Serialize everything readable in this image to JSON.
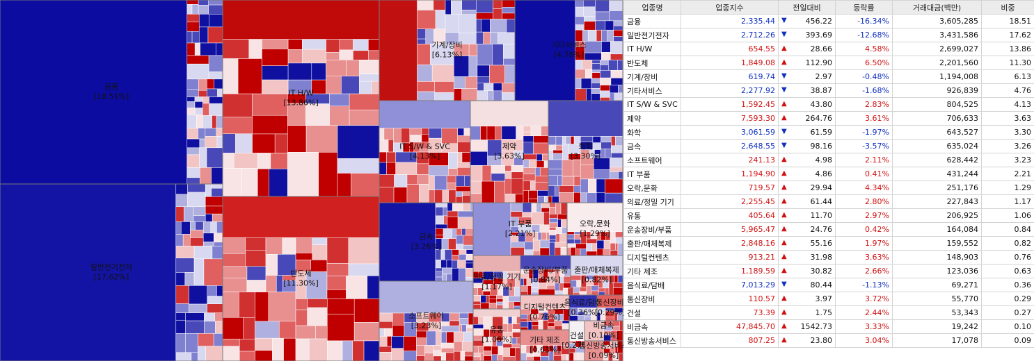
{
  "treemap": {
    "blocks": [
      {
        "name": "금융",
        "share": "[18.51%]"
      },
      {
        "name": "일반전기전자",
        "share": "[17.62%]"
      },
      {
        "name": "IT H/W",
        "share": "[13.86%]"
      },
      {
        "name": "반도체",
        "share": "[11.30%]"
      },
      {
        "name": "기계/장비",
        "share": "[6.13%]"
      },
      {
        "name": "기타서비스",
        "share": "[4.76%]"
      },
      {
        "name": "IT S/W & SVC",
        "share": "[4.13%]"
      },
      {
        "name": "제약",
        "share": "[3.63%]"
      },
      {
        "name": "화학",
        "share": "[3.30%]"
      },
      {
        "name": "금속",
        "share": "[3.26%]"
      },
      {
        "name": "소프트웨어",
        "share": "[3.23%]"
      },
      {
        "name": "IT 부품",
        "share": "[2.21%]"
      },
      {
        "name": "오락,문화",
        "share": "[1.29%]"
      },
      {
        "name": "의료/정밀 기기",
        "share": "[1.17%]"
      },
      {
        "name": "유통",
        "share": "[1.06%]"
      },
      {
        "name": "운송장비/부품",
        "share": "[0.84%]"
      },
      {
        "name": "출판/매체복제",
        "share": "[0.82%]"
      },
      {
        "name": "디지털컨텐츠",
        "share": "[0.76%]"
      },
      {
        "name": "기타 제조",
        "share": "[0.63%]"
      },
      {
        "name": "음식료/담배",
        "share": "[0.36%]"
      },
      {
        "name": "통신장비",
        "share": "[0.29%]"
      },
      {
        "name": "건설",
        "share": "[0.27%]"
      },
      {
        "name": "비금속",
        "share": "[0.10%]"
      },
      {
        "name": "통신방송서비스",
        "share": "[0.09%]"
      }
    ]
  },
  "table": {
    "header": [
      "업종명",
      "업종지수",
      "전일대비",
      "등락률",
      "거래대금(백만)",
      "비중"
    ],
    "rows": [
      [
        "금융",
        "2,335.44",
        "456.22",
        "-16.34%",
        "3,605,285",
        "18.51"
      ],
      [
        "일반전기전자",
        "2,712.26",
        "393.69",
        "-12.68%",
        "3,431,586",
        "17.62"
      ],
      [
        "IT H/W",
        "654.55",
        "28.66",
        "4.58%",
        "2,699,027",
        "13.86"
      ],
      [
        "반도체",
        "1,849.08",
        "112.90",
        "6.50%",
        "2,201,560",
        "11.30"
      ],
      [
        "기계/장비",
        "619.74",
        "2.97",
        "-0.48%",
        "1,194,008",
        "6.13"
      ],
      [
        "기타서비스",
        "2,277.92",
        "38.87",
        "-1.68%",
        "926,839",
        "4.76"
      ],
      [
        "IT S/W & SVC",
        "1,592.45",
        "43.80",
        "2.83%",
        "804,525",
        "4.13"
      ],
      [
        "제약",
        "7,593.30",
        "264.76",
        "3.61%",
        "706,633",
        "3.63"
      ],
      [
        "화학",
        "3,061.59",
        "61.59",
        "-1.97%",
        "643,527",
        "3.30"
      ],
      [
        "금속",
        "2,648.55",
        "98.16",
        "-3.57%",
        "635,024",
        "3.26"
      ],
      [
        "소프트웨어",
        "241.13",
        "4.98",
        "2.11%",
        "628,442",
        "3.23"
      ],
      [
        "IT 부품",
        "1,194.90",
        "4.86",
        "0.41%",
        "431,244",
        "2.21"
      ],
      [
        "오락,문화",
        "719.57",
        "29.94",
        "4.34%",
        "251,176",
        "1.29"
      ],
      [
        "의료/정밀 기기",
        "2,255.45",
        "61.44",
        "2.80%",
        "227,843",
        "1.17"
      ],
      [
        "유통",
        "405.64",
        "11.70",
        "2.97%",
        "206,925",
        "1.06"
      ],
      [
        "운송장비/부품",
        "5,965.47",
        "24.76",
        "0.42%",
        "164,084",
        "0.84"
      ],
      [
        "출판/매체복제",
        "2,848.16",
        "55.16",
        "1.97%",
        "159,552",
        "0.82"
      ],
      [
        "디지털컨텐츠",
        "913.21",
        "31.98",
        "3.63%",
        "148,903",
        "0.76"
      ],
      [
        "기타 제조",
        "1,189.59",
        "30.82",
        "2.66%",
        "123,036",
        "0.63"
      ],
      [
        "음식료/담배",
        "7,013.29",
        "80.44",
        "-1.13%",
        "69,271",
        "0.36"
      ],
      [
        "통신장비",
        "110.57",
        "3.97",
        "3.72%",
        "55,770",
        "0.29"
      ],
      [
        "건설",
        "73.39",
        "1.75",
        "2.44%",
        "53,343",
        "0.27"
      ],
      [
        "비금속",
        "47,845.70",
        "1542.73",
        "3.33%",
        "19,242",
        "0.10"
      ],
      [
        "통신방송서비스",
        "807.25",
        "23.80",
        "3.04%",
        "17,078",
        "0.09"
      ]
    ]
  }
}
